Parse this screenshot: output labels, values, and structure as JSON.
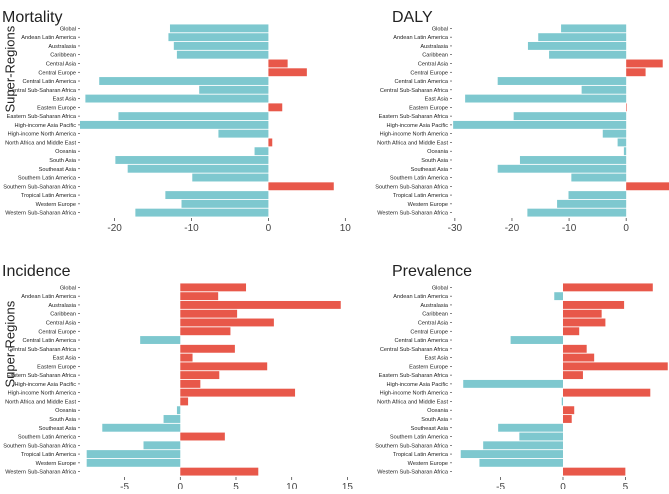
{
  "figure": {
    "y_axis_label": "Super-Regions"
  },
  "colors": {
    "positive": "#e8584a",
    "negative": "#7ec8cf",
    "axis": "#333333",
    "text": "#222222"
  },
  "chart_data": [
    {
      "type": "bar",
      "orientation": "horizontal",
      "title": "Mortality",
      "xlabel": "",
      "ylabel": "Super-Regions",
      "xlim": [
        -24.5,
        11
      ],
      "xticks": [
        -20,
        -10,
        0,
        10
      ],
      "categories": [
        "Global",
        "Andean Latin America",
        "Australasia",
        "Caribbean",
        "Central Asia",
        "Central Europe",
        "Central Latin America",
        "Central Sub-Saharan Africa",
        "East Asia",
        "Eastern Europe",
        "Eastern Sub-Saharan Africa",
        "High-income Asia Pacific",
        "High-income North America",
        "North Africa and Middle East",
        "Oceania",
        "South Asia",
        "Southeast Asia",
        "Southern Latin America",
        "Southern Sub-Saharan Africa",
        "Tropical Latin America",
        "Western Europe",
        "Western Sub-Saharan Africa"
      ],
      "values": [
        -12.8,
        -13,
        -12.3,
        -11.9,
        2.5,
        5,
        -22,
        -9,
        -23.8,
        1.8,
        -19.5,
        -24.5,
        -6.5,
        0.5,
        -1.8,
        -19.9,
        -18.3,
        -9.9,
        8.5,
        -13.4,
        -11.3,
        -17.3
      ]
    },
    {
      "type": "bar",
      "orientation": "horizontal",
      "title": "DALY",
      "xlabel": "",
      "ylabel": "",
      "xlim": [
        -30.5,
        7.5
      ],
      "xticks": [
        -30,
        -20,
        -10,
        0
      ],
      "categories": [
        "Global",
        "Andean Latin America",
        "Australasia",
        "Caribbean",
        "Central Asia",
        "Central Europe",
        "Central Latin America",
        "Central Sub-Saharan Africa",
        "East Asia",
        "Eastern Europe",
        "Eastern Sub-Saharan Africa",
        "High-income Asia Pacific",
        "High-income North America",
        "North Africa and Middle East",
        "Oceania",
        "South Asia",
        "Southeast Asia",
        "Southern Latin America",
        "Southern Sub-Saharan Africa",
        "Tropical Latin America",
        "Western Europe",
        "Western Sub-Saharan Africa"
      ],
      "values": [
        -11.4,
        -15.4,
        -17.2,
        -13.5,
        6.4,
        3.4,
        -22.5,
        -7.8,
        -28.2,
        0,
        -19.7,
        -30.3,
        -4.1,
        -1.5,
        -0.4,
        -18.6,
        -22.5,
        -9.6,
        7.6,
        -10.1,
        -12.1,
        -17.3
      ]
    },
    {
      "type": "bar",
      "orientation": "horizontal",
      "title": "Incidence",
      "xlabel": "",
      "ylabel": "Super-Regions",
      "xlim": [
        -9,
        15.5
      ],
      "xticks": [
        -5,
        0,
        5,
        10,
        15
      ],
      "categories": [
        "Global",
        "Andean Latin America",
        "Australasia",
        "Caribbean",
        "Central Asia",
        "Central Europe",
        "Central Latin America",
        "Central Sub-Saharan Africa",
        "East Asia",
        "Eastern Europe",
        "Eastern Sub-Saharan Africa",
        "High-income Asia Pacific",
        "High-income North America",
        "North Africa and Middle East",
        "Oceania",
        "South Asia",
        "Southeast Asia",
        "Southern Latin America",
        "Southern Sub-Saharan Africa",
        "Tropical Latin America",
        "Western Europe",
        "Western Sub-Saharan Africa"
      ],
      "values": [
        5.9,
        3.4,
        14.4,
        5.1,
        8.4,
        4.5,
        -3.6,
        4.9,
        1.1,
        7.8,
        3.5,
        1.8,
        10.3,
        0.7,
        -0.3,
        -1.5,
        -7,
        4,
        -3.3,
        -8.4,
        -8.4,
        7
      ]
    },
    {
      "type": "bar",
      "orientation": "horizontal",
      "title": "Prevalence",
      "xlabel": "",
      "ylabel": "",
      "xlim": [
        -8.9,
        8.5
      ],
      "xticks": [
        -5,
        0,
        5
      ],
      "categories": [
        "Global",
        "Andean Latin America",
        "Australasia",
        "Caribbean",
        "Central Asia",
        "Central Europe",
        "Central Latin America",
        "Central Sub-Saharan Africa",
        "East Asia",
        "Eastern Europe",
        "Eastern Sub-Saharan Africa",
        "High-income Asia Pacific",
        "High-income North America",
        "North Africa and Middle East",
        "Oceania",
        "South Asia",
        "Southeast Asia",
        "Southern Latin America",
        "Southern Sub-Saharan Africa",
        "Tropical Latin America",
        "Western Europe",
        "Western Sub-Saharan Africa"
      ],
      "values": [
        7.2,
        -0.7,
        4.9,
        3.1,
        3.4,
        1.3,
        -4.2,
        1.9,
        2.5,
        8.4,
        1.6,
        -8,
        7,
        -0.1,
        0.9,
        0.7,
        -5.2,
        -3.5,
        -6.4,
        -8.2,
        -6.7,
        5
      ]
    }
  ]
}
